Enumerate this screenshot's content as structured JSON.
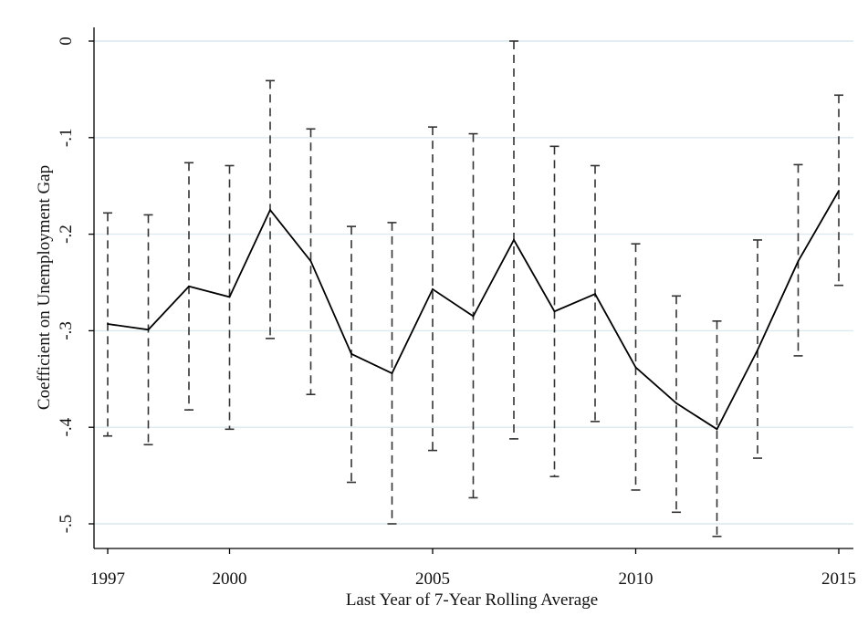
{
  "chart_data": {
    "type": "line",
    "title": "",
    "xlabel": "Last Year of 7-Year Rolling Average",
    "ylabel": "Coefficient on Unemployment Gap",
    "xlim": [
      1997,
      2015
    ],
    "ylim": [
      -0.5,
      0
    ],
    "x_ticks": [
      1997,
      2000,
      2005,
      2010,
      2015
    ],
    "x_tick_labels": [
      "1997",
      "2000",
      "2005",
      "2010",
      "2015"
    ],
    "y_ticks": [
      0,
      -0.1,
      -0.2,
      -0.3,
      -0.4,
      -0.5
    ],
    "y_tick_labels": [
      "0",
      "-.1",
      "-.2",
      "-.3",
      "-.4",
      "-.5"
    ],
    "grid": "horizontal",
    "legend": "none",
    "colors": {
      "line": "#000000",
      "ci": "#333333",
      "grid": "#dce9ee",
      "axis": "#000000"
    },
    "series": [
      {
        "style": "solid line",
        "x": [
          1997,
          1998,
          1999,
          2000,
          2001,
          2002,
          2003,
          2004,
          2005,
          2006,
          2007,
          2008,
          2009,
          2010,
          2011,
          2012,
          2013,
          2014,
          2015
        ],
        "values": [
          -0.293,
          -0.299,
          -0.254,
          -0.265,
          -0.175,
          -0.228,
          -0.324,
          -0.344,
          -0.257,
          -0.285,
          -0.206,
          -0.28,
          -0.262,
          -0.338,
          -0.375,
          -0.402,
          -0.32,
          -0.228,
          -0.155
        ]
      }
    ],
    "confidence_intervals": {
      "style": "dashed capped range",
      "x": [
        1997,
        1998,
        1999,
        2000,
        2001,
        2002,
        2003,
        2004,
        2005,
        2006,
        2007,
        2008,
        2009,
        2010,
        2011,
        2012,
        2013,
        2014,
        2015
      ],
      "upper": [
        -0.178,
        -0.18,
        -0.126,
        -0.129,
        -0.041,
        -0.091,
        -0.192,
        -0.188,
        -0.089,
        -0.096,
        0.0,
        -0.109,
        -0.129,
        -0.21,
        -0.264,
        -0.29,
        -0.206,
        -0.128,
        -0.056
      ],
      "lower": [
        -0.409,
        -0.418,
        -0.382,
        -0.402,
        -0.308,
        -0.366,
        -0.457,
        -0.5,
        -0.424,
        -0.473,
        -0.412,
        -0.451,
        -0.394,
        -0.465,
        -0.488,
        -0.513,
        -0.432,
        -0.326,
        -0.253
      ]
    }
  }
}
